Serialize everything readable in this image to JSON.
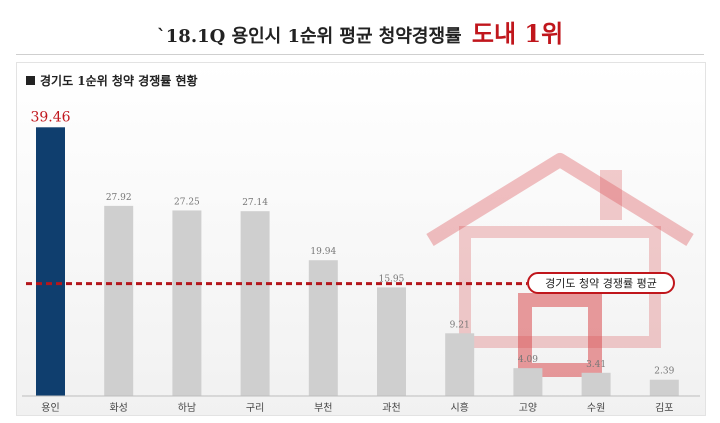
{
  "header": {
    "title_prefix": "`18.1Q 용인시 1순위 평균 청약경쟁률",
    "title_highlight": "도내 1위"
  },
  "section": {
    "title": "경기도 1순위 청약 경쟁률 현황"
  },
  "chart_data": {
    "type": "bar",
    "title": "경기도 1순위 청약 경쟁률 현황",
    "categories": [
      "용인",
      "화성",
      "하남",
      "구리",
      "부천",
      "과천",
      "시흥",
      "고양",
      "수원",
      "김포"
    ],
    "values": [
      39.46,
      27.92,
      27.25,
      27.14,
      19.94,
      15.95,
      9.21,
      4.09,
      3.41,
      2.39
    ],
    "value_labels": [
      "39.46",
      "27.92",
      "27.25",
      "27.14",
      "19.94",
      "15.95",
      "9.21",
      "4.09",
      "3.41",
      "2.39"
    ],
    "highlight_index": 0,
    "ylim": [
      0,
      42
    ],
    "grid": false,
    "reference_line": {
      "label": "경기도 청약 경쟁률 평균",
      "value": 16.5
    },
    "colors": {
      "highlight": "#0f3e6e",
      "bar": "#cfcfcf",
      "highlight_label": "#c0161c",
      "reference": "#b3161c"
    }
  },
  "decoration": {
    "icon": "house-icon",
    "color": "#d94a4f"
  }
}
